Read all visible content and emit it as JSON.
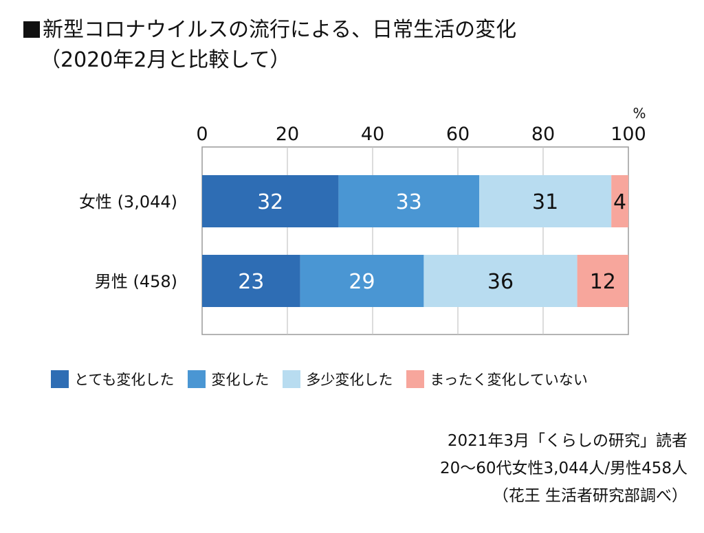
{
  "title": {
    "line1": "新型コロナウイルスの流行による、日常生活の変化",
    "line2": "（2020年2月と比較して）"
  },
  "chart_data": {
    "type": "bar",
    "orientation": "horizontal",
    "stacked": true,
    "unit": "%",
    "xlim": [
      0,
      100
    ],
    "x_ticks": [
      "0",
      "20",
      "40",
      "60",
      "80",
      "100"
    ],
    "categories": [
      "女性 (3,044)",
      "男性 (458)"
    ],
    "series": [
      {
        "name": "とても変化した",
        "color": "#2e6db4",
        "values": [
          32,
          23
        ]
      },
      {
        "name": "変化した",
        "color": "#4a96d3",
        "values": [
          33,
          29
        ]
      },
      {
        "name": "多少変化した",
        "color": "#b8dcf0",
        "values": [
          31,
          36
        ]
      },
      {
        "name": "まったく変化していない",
        "color": "#f7a69c",
        "values": [
          4,
          12
        ]
      }
    ],
    "grid": true
  },
  "source": {
    "line1": "2021年3月「くらしの研究」読者",
    "line2": "20〜60代女性3,044人/男性458人",
    "line3": "（花王 生活者研究部調べ）"
  }
}
